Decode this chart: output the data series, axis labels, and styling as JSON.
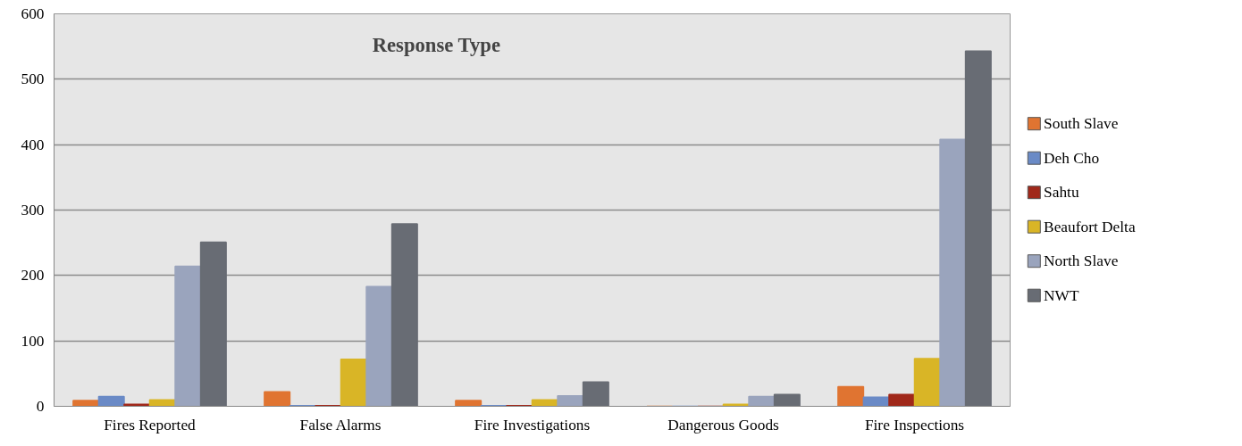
{
  "chart_data": {
    "type": "bar",
    "title": "Response Type",
    "categories": [
      "Fires Reported",
      "False Alarms",
      "Fire Investigations",
      "Dangerous Goods",
      "Fire Inspections"
    ],
    "series": [
      {
        "name": "South Slave",
        "color": "#e07431",
        "values": [
          9,
          22,
          9,
          0,
          30
        ]
      },
      {
        "name": "Deh Cho",
        "color": "#6a8ac6",
        "values": [
          15,
          1,
          1,
          0,
          14
        ]
      },
      {
        "name": "Sahtu",
        "color": "#a0281a",
        "values": [
          3,
          1,
          1,
          0,
          18
        ]
      },
      {
        "name": "Beaufort Delta",
        "color": "#d9b526",
        "values": [
          10,
          72,
          10,
          3,
          73
        ]
      },
      {
        "name": "North Slave",
        "color": "#9aa4bd",
        "values": [
          214,
          183,
          16,
          15,
          408
        ]
      },
      {
        "name": "NWT",
        "color": "#686c74",
        "values": [
          251,
          279,
          37,
          18,
          543
        ]
      }
    ],
    "ylim": [
      0,
      600
    ],
    "yticks": [
      0,
      100,
      200,
      300,
      400,
      500,
      600
    ],
    "grid": "y",
    "legend": "right"
  }
}
